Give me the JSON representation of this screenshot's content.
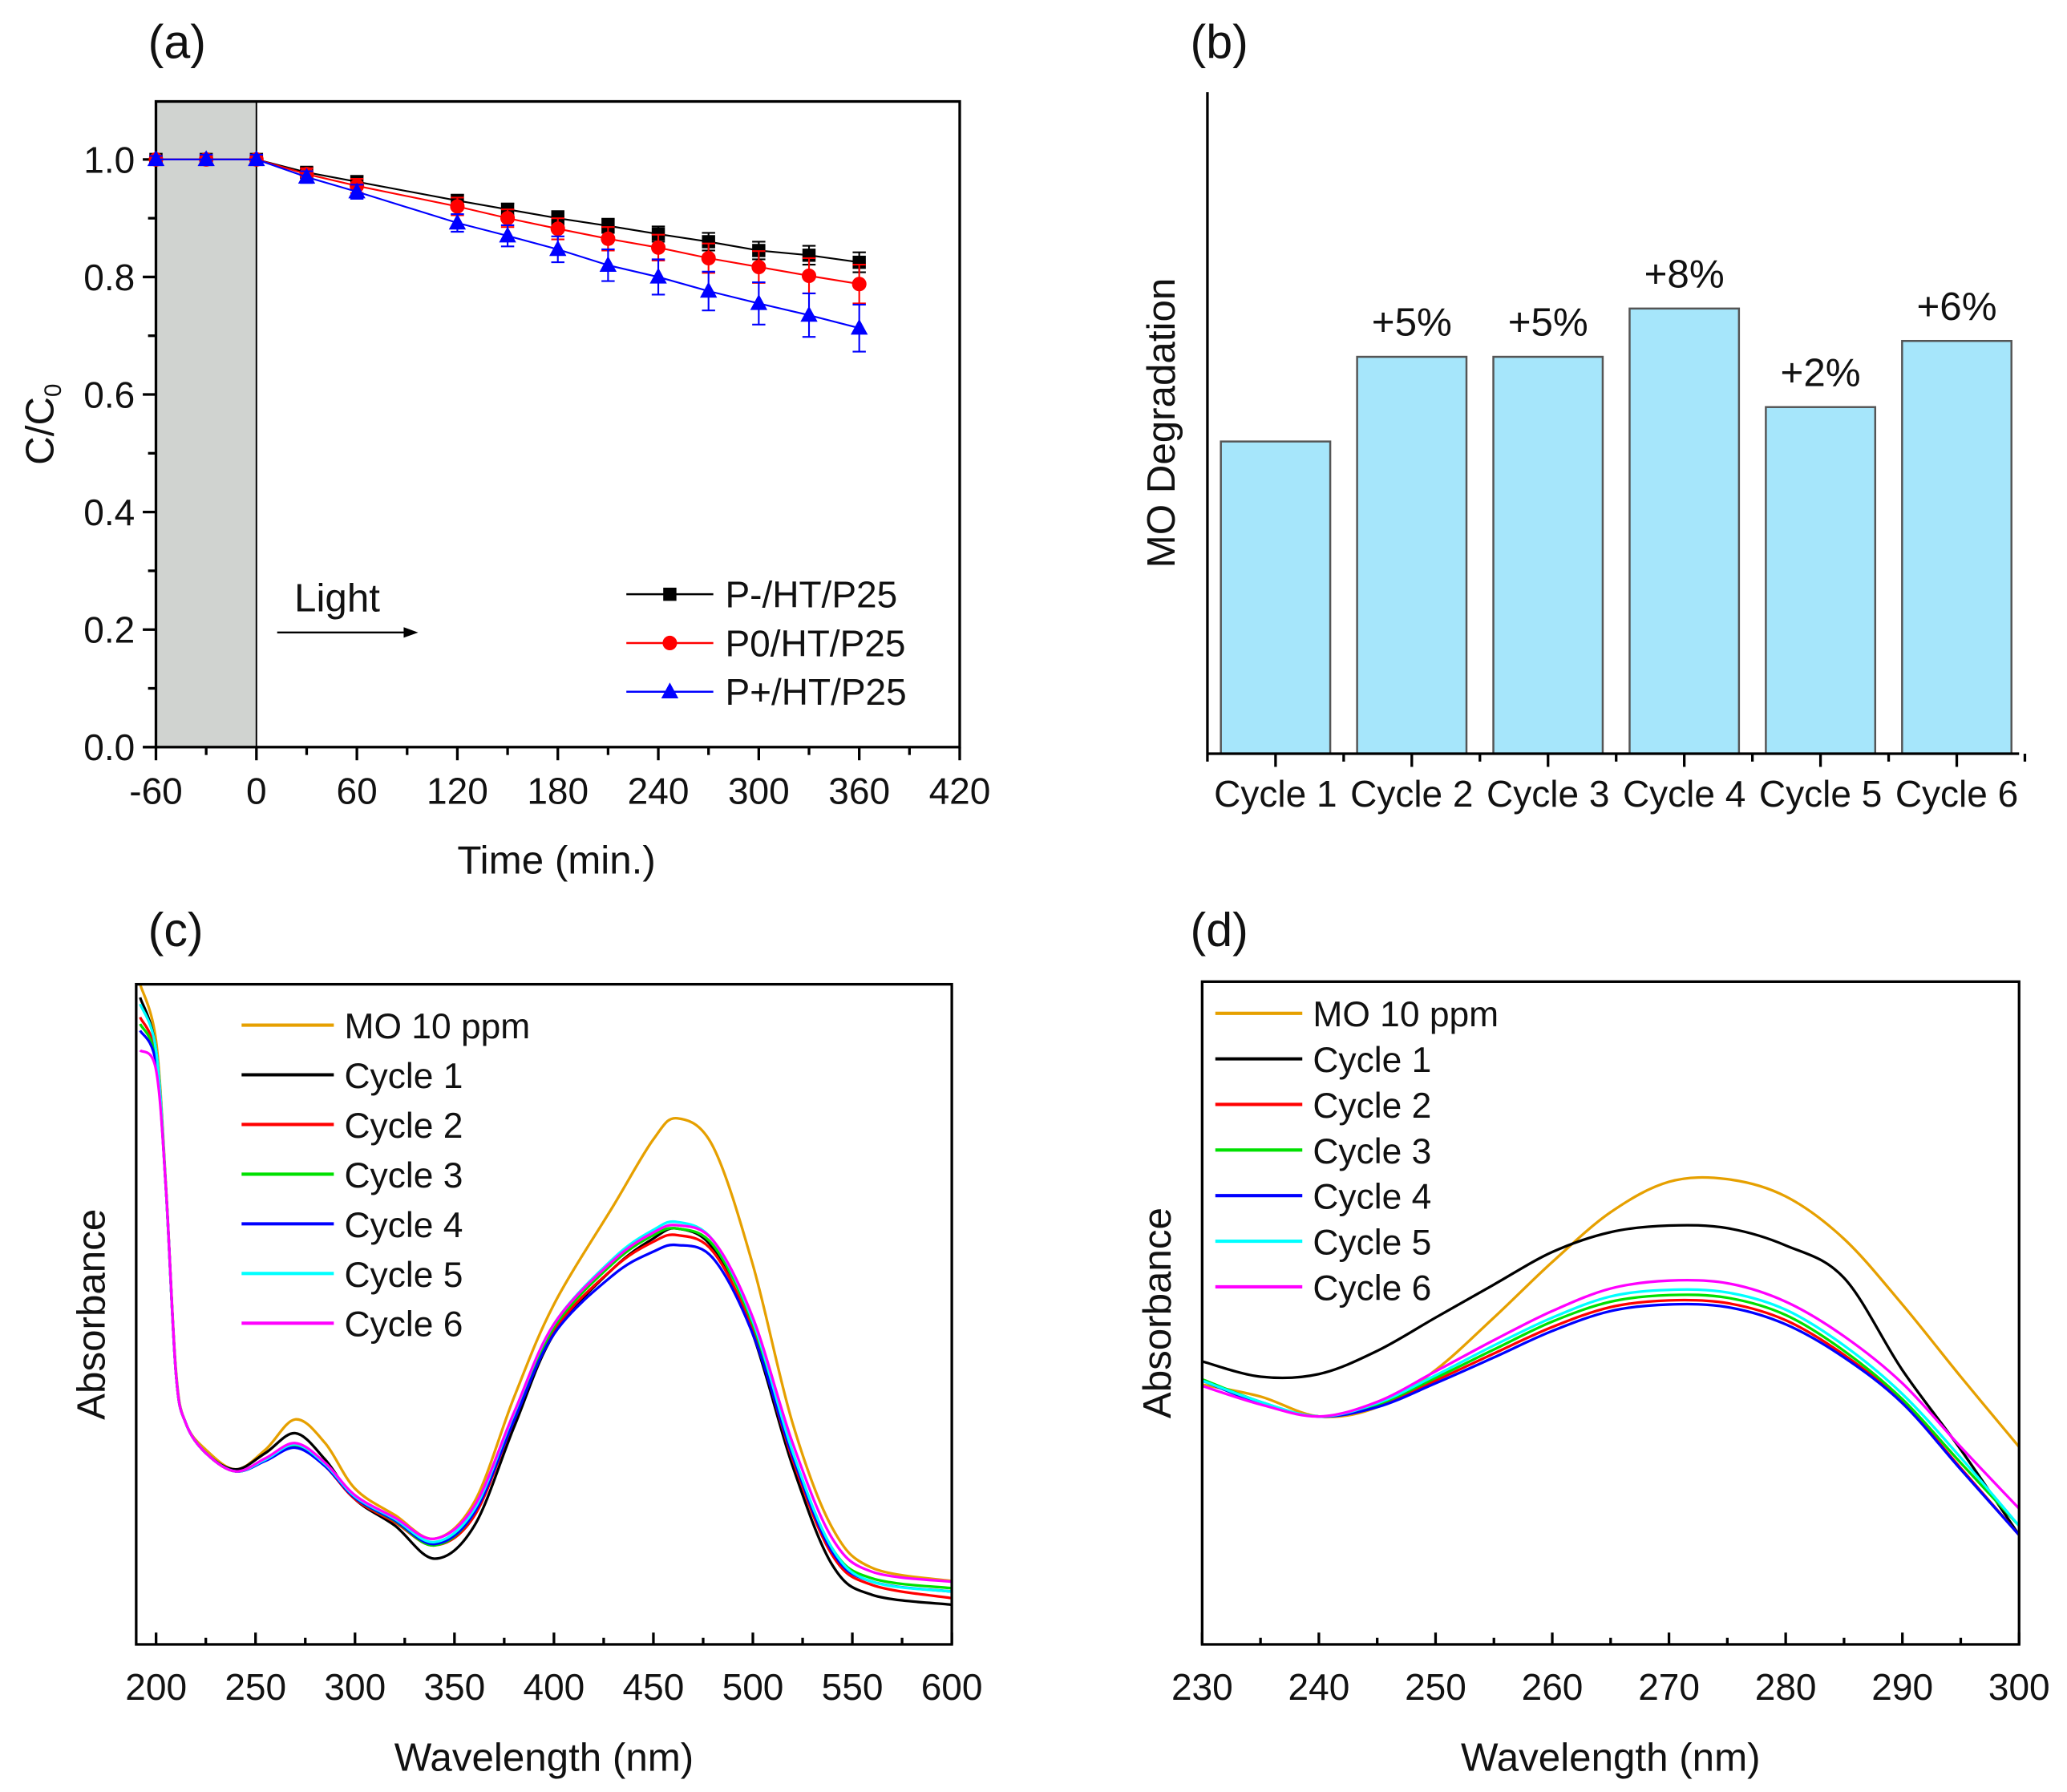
{
  "chart_data": [
    {
      "panel_label": "(a)",
      "type": "line",
      "xlabel": "Time (min.)",
      "ylabel_main": "C/C",
      "ylabel_sub": "0",
      "xlim": [
        -60,
        420
      ],
      "ylim": [
        0,
        1.1
      ],
      "xticks": [
        -60,
        0,
        60,
        120,
        180,
        240,
        300,
        360,
        420
      ],
      "yticks": [
        "0.0",
        "0.2",
        "0.4",
        "0.6",
        "0.8",
        "1.0"
      ],
      "dark_region": [
        -60,
        0
      ],
      "annotation": "Light",
      "legend_position": "bottom-right",
      "x": [
        -60,
        -30,
        0,
        30,
        60,
        120,
        150,
        180,
        210,
        240,
        270,
        300,
        330,
        360
      ],
      "series": [
        {
          "name": "P-/HT/P25",
          "color": "#000000",
          "marker": "square",
          "values": [
            1,
            1,
            1,
            0.978,
            0.962,
            0.93,
            0.915,
            0.9,
            0.887,
            0.873,
            0.86,
            0.845,
            0.837,
            0.825
          ],
          "errors": [
            0.005,
            0.006,
            0.006,
            0.008,
            0.01,
            0.01,
            0.01,
            0.012,
            0.012,
            0.013,
            0.015,
            0.015,
            0.016,
            0.017
          ]
        },
        {
          "name": "P0/HT/P25",
          "color": "#ff0000",
          "marker": "circle",
          "values": [
            1,
            1,
            1,
            0.975,
            0.955,
            0.92,
            0.9,
            0.882,
            0.865,
            0.85,
            0.832,
            0.817,
            0.802,
            0.788
          ],
          "errors": [
            0.006,
            0.008,
            0.008,
            0.01,
            0.012,
            0.015,
            0.015,
            0.018,
            0.02,
            0.022,
            0.025,
            0.027,
            0.03,
            0.033
          ]
        },
        {
          "name": "P+/HT/P25",
          "color": "#0000ff",
          "marker": "triangle",
          "values": [
            1,
            1,
            1,
            0.97,
            0.945,
            0.892,
            0.87,
            0.847,
            0.82,
            0.8,
            0.776,
            0.755,
            0.735,
            0.713
          ],
          "errors": [
            0.006,
            0.008,
            0.008,
            0.01,
            0.012,
            0.015,
            0.018,
            0.022,
            0.027,
            0.03,
            0.033,
            0.036,
            0.037,
            0.04
          ]
        }
      ]
    },
    {
      "panel_label": "(b)",
      "type": "bar",
      "ylabel": "MO Degradation",
      "ylim": [
        0,
        1
      ],
      "categories": [
        "Cycle 1",
        "Cycle 2",
        "Cycle 3",
        "Cycle 4",
        "Cycle 5",
        "Cycle 6"
      ],
      "values": [
        0.472,
        0.6,
        0.6,
        0.673,
        0.524,
        0.624
      ],
      "value_units": "relative (no y-axis scale shown)",
      "bar_labels": [
        "",
        "+5%",
        "+5%",
        "+8%",
        "+2%",
        "+6%"
      ],
      "bar_color": "#a6e6fb"
    },
    {
      "panel_label": "(c)",
      "type": "line",
      "xlabel": "Wavelength (nm)",
      "ylabel": "Absorbance",
      "xlim": [
        190,
        600
      ],
      "ylim": [
        0,
        1
      ],
      "xticks": [
        200,
        250,
        300,
        350,
        400,
        450,
        500,
        550,
        600
      ],
      "legend_position": "top-left",
      "x": [
        192,
        200,
        205,
        210,
        215,
        225,
        240,
        255,
        270,
        285,
        300,
        320,
        340,
        360,
        380,
        400,
        430,
        450,
        462,
        480,
        500,
        520,
        540,
        560,
        600
      ],
      "series": [
        {
          "name": "MO 10 ppm",
          "color": "#e6a000",
          "values": [
            1.0,
            0.914,
            0.695,
            0.415,
            0.335,
            0.295,
            0.265,
            0.295,
            0.341,
            0.305,
            0.236,
            0.196,
            0.16,
            0.216,
            0.375,
            0.515,
            0.665,
            0.765,
            0.797,
            0.754,
            0.575,
            0.335,
            0.176,
            0.116,
            0.096
          ]
        },
        {
          "name": "Cycle 1",
          "color": "#000000",
          "values": [
            0.98,
            0.9,
            0.69,
            0.41,
            0.335,
            0.29,
            0.265,
            0.29,
            0.32,
            0.28,
            0.22,
            0.18,
            0.13,
            0.18,
            0.33,
            0.47,
            0.57,
            0.615,
            0.63,
            0.6,
            0.47,
            0.27,
            0.12,
            0.075,
            0.06
          ]
        },
        {
          "name": "Cycle 2",
          "color": "#ff0000",
          "values": [
            0.95,
            0.89,
            0.69,
            0.41,
            0.335,
            0.29,
            0.262,
            0.28,
            0.3,
            0.27,
            0.22,
            0.185,
            0.15,
            0.195,
            0.34,
            0.475,
            0.57,
            0.61,
            0.62,
            0.595,
            0.475,
            0.28,
            0.135,
            0.09,
            0.07
          ]
        },
        {
          "name": "Cycle 3",
          "color": "#00e000",
          "values": [
            0.94,
            0.885,
            0.69,
            0.41,
            0.335,
            0.29,
            0.262,
            0.28,
            0.302,
            0.272,
            0.222,
            0.187,
            0.15,
            0.2,
            0.345,
            0.48,
            0.578,
            0.62,
            0.63,
            0.605,
            0.485,
            0.29,
            0.145,
            0.1,
            0.085
          ]
        },
        {
          "name": "Cycle 4",
          "color": "#0000ff",
          "values": [
            0.93,
            0.88,
            0.69,
            0.41,
            0.335,
            0.29,
            0.262,
            0.278,
            0.298,
            0.27,
            0.222,
            0.188,
            0.152,
            0.2,
            0.34,
            0.47,
            0.56,
            0.595,
            0.605,
            0.585,
            0.47,
            0.285,
            0.14,
            0.095,
            0.08
          ]
        },
        {
          "name": "Cycle 5",
          "color": "#00ffff",
          "values": [
            0.97,
            0.9,
            0.69,
            0.41,
            0.335,
            0.29,
            0.262,
            0.28,
            0.303,
            0.273,
            0.224,
            0.19,
            0.155,
            0.205,
            0.35,
            0.485,
            0.585,
            0.628,
            0.64,
            0.612,
            0.49,
            0.292,
            0.145,
            0.095,
            0.08
          ]
        },
        {
          "name": "Cycle 6",
          "color": "#ff00ff",
          "values": [
            0.9,
            0.87,
            0.69,
            0.41,
            0.335,
            0.29,
            0.262,
            0.282,
            0.305,
            0.275,
            0.226,
            0.192,
            0.16,
            0.21,
            0.352,
            0.485,
            0.582,
            0.624,
            0.635,
            0.612,
            0.495,
            0.305,
            0.16,
            0.11,
            0.095
          ]
        }
      ]
    },
    {
      "panel_label": "(d)",
      "type": "line",
      "xlabel": "Wavelength (nm)",
      "ylabel": "Absorbance",
      "xlim": [
        230,
        300
      ],
      "ylim": [
        0,
        1
      ],
      "xticks": [
        230,
        240,
        250,
        260,
        270,
        280,
        290,
        300
      ],
      "legend_position": "top-left",
      "x": [
        230,
        235,
        240,
        245,
        250,
        255,
        260,
        265,
        270,
        275,
        280,
        285,
        290,
        295,
        300
      ],
      "series": [
        {
          "name": "MO 10 ppm",
          "color": "#e6a000",
          "values": [
            0.392,
            0.374,
            0.344,
            0.358,
            0.414,
            0.493,
            0.577,
            0.652,
            0.698,
            0.702,
            0.676,
            0.612,
            0.513,
            0.404,
            0.298
          ]
        },
        {
          "name": "Cycle 1",
          "color": "#000000",
          "values": [
            0.427,
            0.404,
            0.408,
            0.443,
            0.493,
            0.543,
            0.592,
            0.622,
            0.632,
            0.628,
            0.602,
            0.553,
            0.414,
            0.294,
            0.165
          ]
        },
        {
          "name": "Cycle 2",
          "color": "#ff0000",
          "values": [
            0.398,
            0.364,
            0.344,
            0.36,
            0.398,
            0.439,
            0.479,
            0.509,
            0.519,
            0.515,
            0.489,
            0.437,
            0.366,
            0.266,
            0.165
          ]
        },
        {
          "name": "Cycle 3",
          "color": "#00e000",
          "values": [
            0.4,
            0.366,
            0.344,
            0.362,
            0.402,
            0.445,
            0.487,
            0.517,
            0.527,
            0.523,
            0.497,
            0.443,
            0.37,
            0.274,
            0.179
          ]
        },
        {
          "name": "Cycle 4",
          "color": "#0000ff",
          "values": [
            0.398,
            0.364,
            0.344,
            0.358,
            0.394,
            0.433,
            0.473,
            0.503,
            0.513,
            0.509,
            0.483,
            0.433,
            0.364,
            0.264,
            0.165
          ]
        },
        {
          "name": "Cycle 5",
          "color": "#00ffff",
          "values": [
            0.398,
            0.366,
            0.344,
            0.364,
            0.406,
            0.451,
            0.493,
            0.525,
            0.535,
            0.531,
            0.505,
            0.451,
            0.378,
            0.282,
            0.179
          ]
        },
        {
          "name": "Cycle 6",
          "color": "#ff00ff",
          "values": [
            0.39,
            0.362,
            0.344,
            0.366,
            0.412,
            0.459,
            0.503,
            0.537,
            0.549,
            0.545,
            0.517,
            0.465,
            0.394,
            0.298,
            0.205
          ]
        }
      ]
    }
  ]
}
